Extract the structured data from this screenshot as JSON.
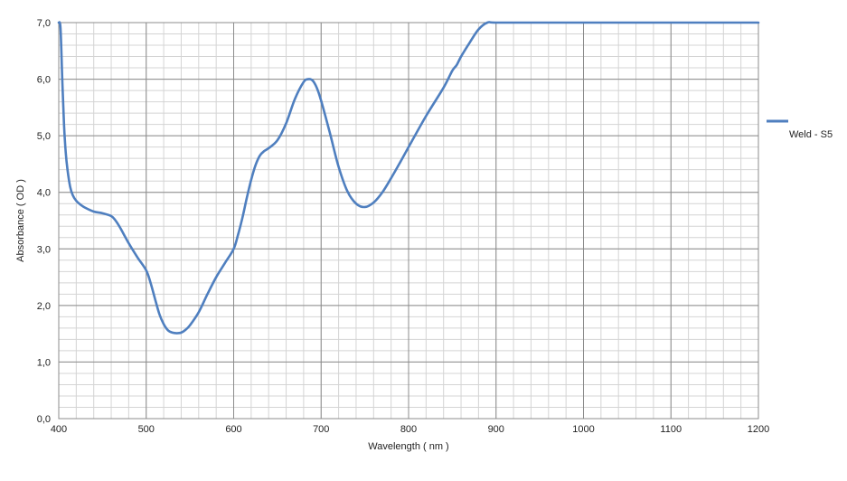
{
  "chart_data": {
    "type": "line",
    "title": "",
    "xlabel": "Wavelength ( nm )",
    "ylabel": "Absorbance ( OD )",
    "xlim": [
      400,
      1200
    ],
    "ylim": [
      0,
      7
    ],
    "x_ticks": [
      400,
      500,
      600,
      700,
      800,
      900,
      1000,
      1100,
      1200
    ],
    "x_tick_labels": [
      "400",
      "500",
      "600",
      "700",
      "800",
      "900",
      "1000",
      "1100",
      "1200"
    ],
    "y_ticks": [
      0,
      1,
      2,
      3,
      4,
      5,
      6,
      7
    ],
    "y_tick_labels": [
      "0,0",
      "1,0",
      "2,0",
      "3,0",
      "4,0",
      "5,0",
      "6,0",
      "7,0"
    ],
    "x_minor_step": 20,
    "y_minor_step": 0.2,
    "grid": true,
    "legend": "right",
    "series": [
      {
        "name": "Weld - S5",
        "color": "#4f7fbf",
        "x": [
          400,
          402,
          404,
          406,
          408,
          410,
          413,
          416,
          420,
          425,
          430,
          440,
          450,
          460,
          465,
          470,
          480,
          490,
          500,
          505,
          510,
          515,
          520,
          525,
          530,
          535,
          540,
          545,
          550,
          560,
          570,
          580,
          590,
          600,
          605,
          610,
          615,
          620,
          625,
          630,
          635,
          640,
          650,
          660,
          670,
          680,
          685,
          690,
          695,
          700,
          710,
          720,
          730,
          740,
          750,
          760,
          770,
          780,
          790,
          800,
          820,
          840,
          850,
          855,
          860,
          870,
          880,
          890,
          900,
          950,
          1000,
          1050,
          1100,
          1150,
          1200
        ],
        "values": [
          7.0,
          6.9,
          6.0,
          5.2,
          4.7,
          4.4,
          4.1,
          3.95,
          3.85,
          3.78,
          3.73,
          3.66,
          3.63,
          3.58,
          3.5,
          3.38,
          3.1,
          2.85,
          2.62,
          2.4,
          2.12,
          1.85,
          1.67,
          1.56,
          1.52,
          1.51,
          1.52,
          1.57,
          1.65,
          1.88,
          2.2,
          2.5,
          2.75,
          3.0,
          3.25,
          3.55,
          3.9,
          4.22,
          4.48,
          4.65,
          4.73,
          4.78,
          4.92,
          5.22,
          5.65,
          5.95,
          6.0,
          5.98,
          5.85,
          5.62,
          5.05,
          4.45,
          4.02,
          3.8,
          3.74,
          3.82,
          4.0,
          4.25,
          4.52,
          4.8,
          5.35,
          5.85,
          6.15,
          6.25,
          6.4,
          6.65,
          6.88,
          7.0,
          7.0,
          7.0,
          7.0,
          7.0,
          7.0,
          7.0,
          7.0
        ]
      }
    ]
  }
}
